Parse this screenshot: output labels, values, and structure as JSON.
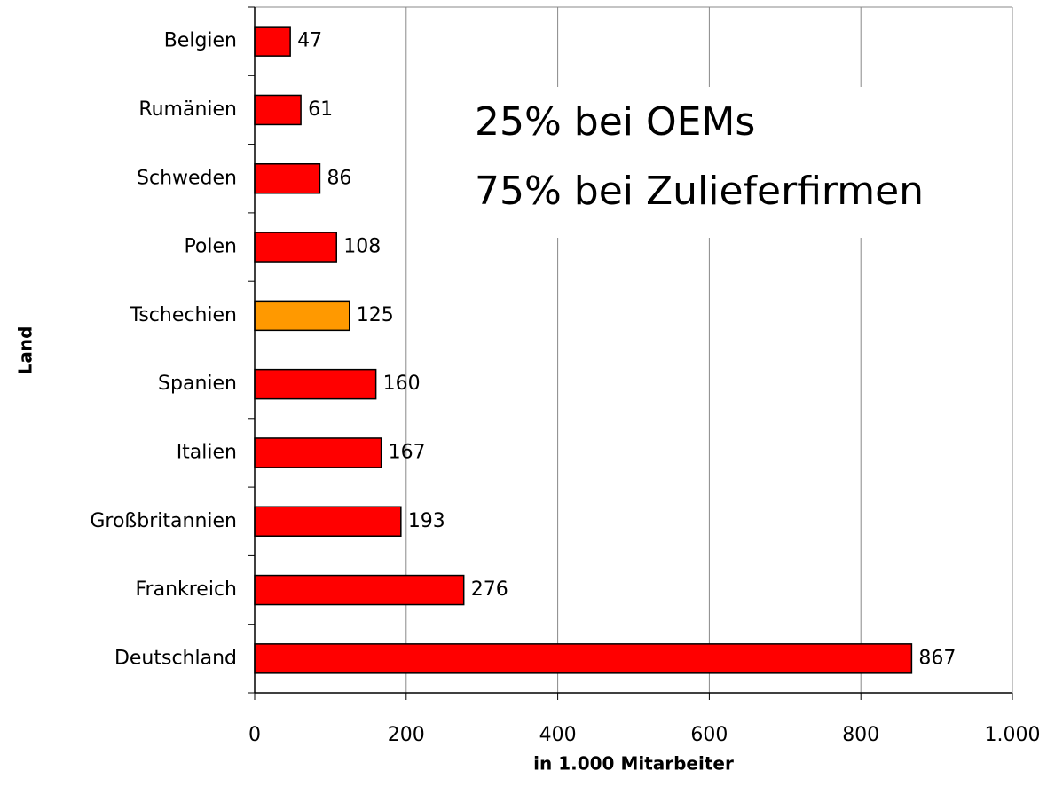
{
  "chart_data": {
    "type": "barh",
    "categories": [
      "Belgien",
      "Rumänien",
      "Schweden",
      "Polen",
      "Tschechien",
      "Spanien",
      "Italien",
      "Großbritannien",
      "Frankreich",
      "Deutschland"
    ],
    "values": [
      47,
      61,
      86,
      108,
      125,
      160,
      167,
      193,
      276,
      867
    ],
    "colors": [
      "#ff0000",
      "#ff0000",
      "#ff0000",
      "#ff0000",
      "#ff9900",
      "#ff0000",
      "#ff0000",
      "#ff0000",
      "#ff0000",
      "#ff0000"
    ],
    "xlim": [
      0,
      1000
    ],
    "xticks": [
      0,
      200,
      400,
      600,
      800,
      {
        "value": 1000,
        "label": "1.000"
      }
    ],
    "grid": true,
    "xlabel": "in 1.000 Mitarbeiter",
    "ylabel": "Land",
    "annotations": [
      "25% bei OEMs",
      "75% bei Zulieferfirmen"
    ]
  }
}
